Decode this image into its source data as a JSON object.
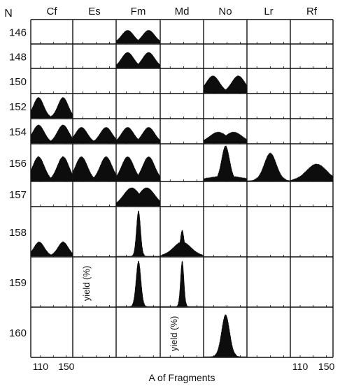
{
  "chart_data": {
    "type": "area",
    "title": "",
    "row_axis_title": "N",
    "xlabel": "A of Fragments",
    "x_ticks": [
      110,
      150
    ],
    "x_tick_labels": [
      "110",
      "150"
    ],
    "columns": [
      "Cf",
      "Es",
      "Fm",
      "Md",
      "No",
      "Lr",
      "Rf"
    ],
    "rows": [
      "146",
      "148",
      "150",
      "152",
      "154",
      "156",
      "157",
      "158",
      "159",
      "160"
    ],
    "panel_annotations": [
      {
        "row": "159",
        "col": "Es",
        "text": "yield (%)"
      },
      {
        "row": "160",
        "col": "Md",
        "text": "yield (%)"
      }
    ],
    "distributions": [
      {
        "row": "146",
        "col": "Fm",
        "shape": "double",
        "peaks": [
          112,
          143
        ],
        "width": 9,
        "height": 0.55
      },
      {
        "row": "148",
        "col": "Fm",
        "shape": "double",
        "peaks": [
          112,
          143
        ],
        "width": 9,
        "height": 0.65
      },
      {
        "row": "150",
        "col": "No",
        "shape": "double",
        "peaks": [
          109,
          147
        ],
        "width": 10,
        "height": 0.7
      },
      {
        "row": "152",
        "col": "Cf",
        "shape": "double",
        "peaks": [
          107,
          145
        ],
        "width": 8,
        "height": 0.85
      },
      {
        "row": "154",
        "col": "Cf",
        "shape": "double",
        "peaks": [
          107,
          145
        ],
        "width": 9,
        "height": 0.75
      },
      {
        "row": "154",
        "col": "Es",
        "shape": "double",
        "peaks": [
          108,
          145
        ],
        "width": 9,
        "height": 0.65
      },
      {
        "row": "154",
        "col": "Fm",
        "shape": "double",
        "peaks": [
          112,
          143
        ],
        "width": 9,
        "height": 0.65
      },
      {
        "row": "154",
        "col": "No",
        "shape": "double",
        "peaks": [
          117,
          140
        ],
        "width": 13,
        "height": 0.45
      },
      {
        "row": "156",
        "col": "Cf",
        "shape": "double",
        "peaks": [
          107,
          145
        ],
        "width": 9,
        "height": 0.65
      },
      {
        "row": "156",
        "col": "Es",
        "shape": "double",
        "peaks": [
          108,
          145
        ],
        "width": 9,
        "height": 0.65
      },
      {
        "row": "156",
        "col": "Fm",
        "shape": "double",
        "peaks": [
          112,
          143
        ],
        "width": 9,
        "height": 0.65
      },
      {
        "row": "156",
        "col": "No",
        "shape": "single",
        "peaks": [
          128
        ],
        "width": 6,
        "height": 0.95,
        "base": 0.12,
        "base_width": 24
      },
      {
        "row": "156",
        "col": "Lr",
        "shape": "single",
        "peaks": [
          130
        ],
        "width": 9,
        "height": 0.75
      },
      {
        "row": "156",
        "col": "Rf",
        "shape": "single",
        "peaks": [
          135
        ],
        "width": 15,
        "height": 0.45
      },
      {
        "row": "157",
        "col": "Fm",
        "shape": "double",
        "peaks": [
          118,
          140
        ],
        "width": 12,
        "height": 0.75
      },
      {
        "row": "158",
        "col": "Cf",
        "shape": "double",
        "peaks": [
          108,
          145
        ],
        "width": 8,
        "height": 0.28
      },
      {
        "row": "158",
        "col": "Fm",
        "shape": "single",
        "peaks": [
          128
        ],
        "width": 3,
        "height": 0.92
      },
      {
        "row": "158",
        "col": "Md",
        "shape": "single",
        "peaks": [
          128
        ],
        "width": 3,
        "height": 0.52,
        "base": 0.28,
        "base_width": 13
      },
      {
        "row": "159",
        "col": "Fm",
        "shape": "single",
        "peaks": [
          128
        ],
        "width": 3.5,
        "height": 0.92
      },
      {
        "row": "159",
        "col": "Md",
        "shape": "single",
        "peaks": [
          128
        ],
        "width": 2.5,
        "height": 0.92
      },
      {
        "row": "160",
        "col": "No",
        "shape": "single",
        "peaks": [
          128
        ],
        "width": 6,
        "height": 0.85
      }
    ]
  }
}
